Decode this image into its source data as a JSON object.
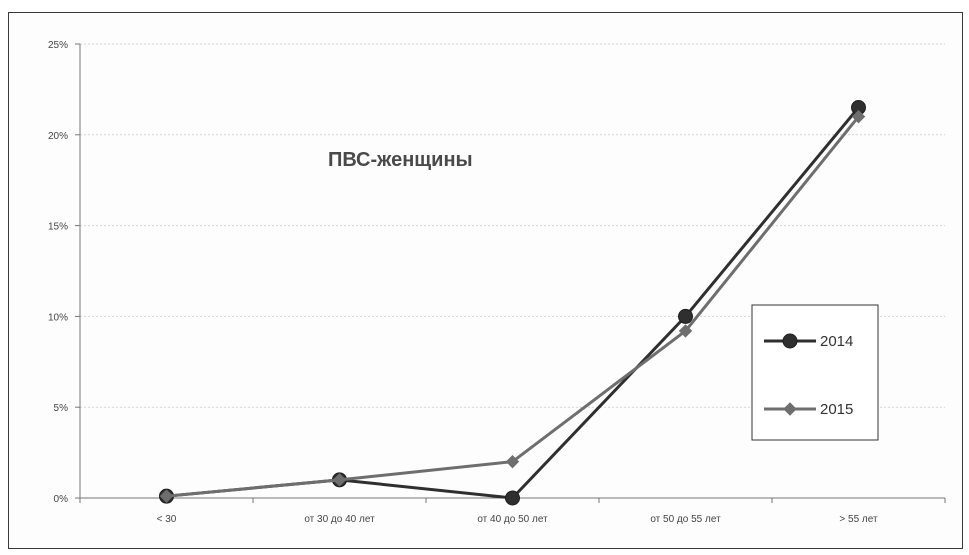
{
  "chart_data": {
    "type": "line",
    "title": "ПВС-женщины",
    "xlabel": "",
    "ylabel": "",
    "categories": [
      "< 30",
      "от 30 до 40 лет",
      "от 40 до 50 лет",
      "от 50 до 55 лет",
      "> 55 лет"
    ],
    "ylim": [
      0,
      25
    ],
    "yticks": [
      "0%",
      "5%",
      "10%",
      "15%",
      "20%",
      "25%"
    ],
    "grid": true,
    "legend": "right",
    "series": [
      {
        "name": "2014",
        "values": [
          0.1,
          1.0,
          0.0,
          10.0,
          21.5
        ],
        "color": "#2f2f2f",
        "marker": "circle"
      },
      {
        "name": "2015",
        "values": [
          0.1,
          1.0,
          2.0,
          9.2,
          21.0
        ],
        "color": "#6e6e6e",
        "marker": "diamond"
      }
    ]
  }
}
